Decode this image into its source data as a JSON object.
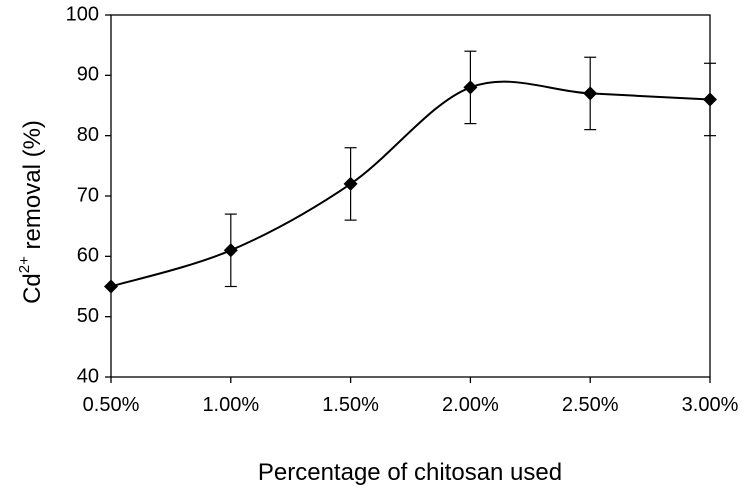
{
  "chart_data": {
    "type": "line",
    "x": [
      "0.50%",
      "1.00%",
      "1.50%",
      "2.00%",
      "2.50%",
      "3.00%"
    ],
    "series": [
      {
        "values": [
          55,
          61,
          72,
          88,
          87,
          86
        ],
        "error": [
          null,
          6,
          6,
          6,
          6,
          6
        ],
        "marker": "diamond",
        "smooth": true
      }
    ],
    "xlabel": "Percentage of chitosan used",
    "ylabel_parts": {
      "pre": "Cd",
      "sup": "2+",
      "post": " removal (%)"
    },
    "ylim": [
      40,
      100
    ],
    "yticks": [
      40,
      50,
      60,
      70,
      80,
      90,
      100
    ],
    "grid": false,
    "colors": {
      "line": "#000000",
      "marker": "#000000"
    }
  }
}
